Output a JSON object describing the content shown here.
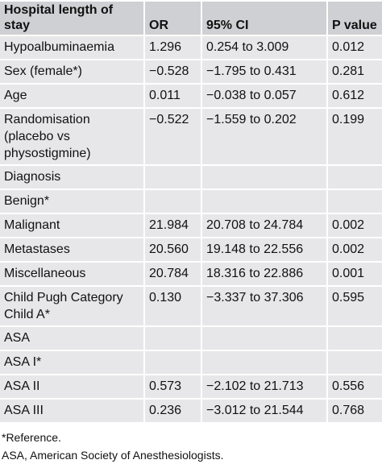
{
  "table": {
    "header": [
      "Hospital length of stay",
      "OR",
      "95% CI",
      "P value"
    ],
    "rows": [
      {
        "label": "Hypoalbuminaemia",
        "or": "1.296",
        "ci": "0.254 to 3.009",
        "p": "0.012"
      },
      {
        "label": "Sex (female*)",
        "or": "−0.528",
        "ci": "−1.795 to 0.431",
        "p": "0.281"
      },
      {
        "label": "Age",
        "or": "0.011",
        "ci": "−0.038 to 0.057",
        "p": "0.612"
      },
      {
        "label": "Randomisation (placebo vs physostigmine)",
        "or": "−0.522",
        "ci": "−1.559 to 0.202",
        "p": "0.199"
      },
      {
        "label": "Diagnosis"
      },
      {
        "label": "Benign*"
      },
      {
        "label": "Malignant",
        "or": "21.984",
        "ci": "20.708 to 24.784",
        "p": "0.002"
      },
      {
        "label": "Metastases",
        "or": "20.560",
        "ci": "19.148 to 22.556",
        "p": "0.002"
      },
      {
        "label": "Miscellaneous",
        "or": "20.784",
        "ci": "18.316 to 22.886",
        "p": "0.001"
      },
      {
        "label": "Child Pugh Category Child A*",
        "or": "0.130",
        "ci": "−3.337 to 37.306",
        "p": "0.595"
      },
      {
        "label": "ASA"
      },
      {
        "label": "ASA I*"
      },
      {
        "label": "ASA II",
        "or": "0.573",
        "ci": "−2.102 to 21.713",
        "p": "0.556"
      },
      {
        "label": "ASA III",
        "or": "0.236",
        "ci": "−3.012 to 21.544",
        "p": "0.768"
      }
    ]
  },
  "footnotes": [
    "*Reference.",
    "ASA, American Society of Anesthesiologists."
  ]
}
